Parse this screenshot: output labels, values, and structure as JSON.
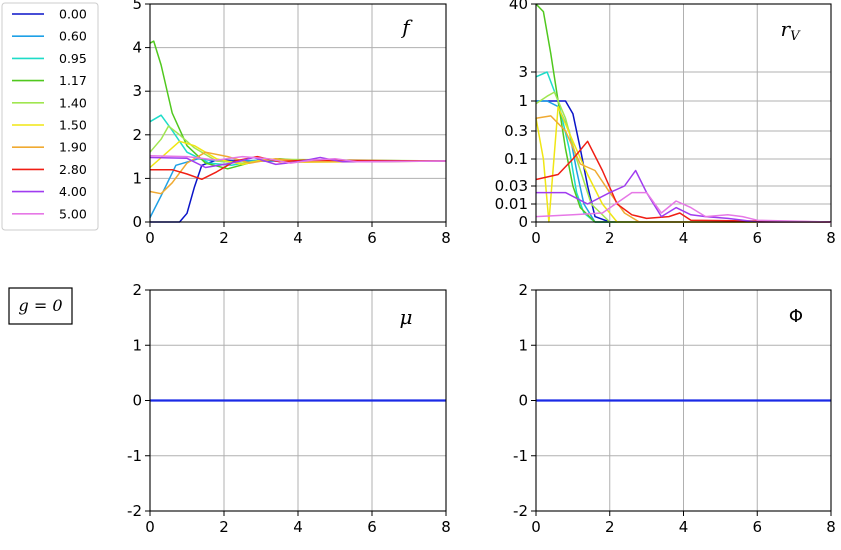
{
  "chart_data": [
    {
      "type": "line",
      "label": "f",
      "xlim": [
        0,
        8
      ],
      "ylim": [
        0,
        5
      ],
      "x_ticks": [
        "0",
        "2",
        "4",
        "6",
        "8"
      ],
      "y_ticks": [
        "0",
        "1",
        "2",
        "3",
        "4",
        "5"
      ],
      "grid": true,
      "series": [
        {
          "name": "0.00",
          "color": "#0a14c8",
          "points": [
            [
              0,
              0
            ],
            [
              0.8,
              0
            ],
            [
              1,
              0.2
            ],
            [
              1.2,
              0.8
            ],
            [
              1.4,
              1.3
            ],
            [
              1.8,
              1.42
            ],
            [
              3,
              1.4
            ],
            [
              8,
              1.4
            ]
          ]
        },
        {
          "name": "0.60",
          "color": "#1ea0e6",
          "points": [
            [
              0,
              0.1
            ],
            [
              0.3,
              0.6
            ],
            [
              0.7,
              1.3
            ],
            [
              1.3,
              1.45
            ],
            [
              2,
              1.38
            ],
            [
              3,
              1.42
            ],
            [
              8,
              1.4
            ]
          ]
        },
        {
          "name": "0.95",
          "color": "#1edcc8",
          "points": [
            [
              0,
              2.3
            ],
            [
              0.3,
              2.45
            ],
            [
              0.6,
              2.1
            ],
            [
              1,
              1.6
            ],
            [
              1.6,
              1.35
            ],
            [
              2.2,
              1.3
            ],
            [
              3,
              1.42
            ],
            [
              4,
              1.38
            ],
            [
              8,
              1.4
            ]
          ]
        },
        {
          "name": "1.17",
          "color": "#50c81e",
          "points": [
            [
              0,
              4.1
            ],
            [
              0.1,
              4.15
            ],
            [
              0.3,
              3.6
            ],
            [
              0.6,
              2.5
            ],
            [
              1,
              1.75
            ],
            [
              1.5,
              1.35
            ],
            [
              2.1,
              1.22
            ],
            [
              2.8,
              1.38
            ],
            [
              3.5,
              1.45
            ],
            [
              4.5,
              1.38
            ],
            [
              8,
              1.4
            ]
          ]
        },
        {
          "name": "1.40",
          "color": "#a0e650",
          "points": [
            [
              0,
              1.6
            ],
            [
              0.3,
              1.9
            ],
            [
              0.5,
              2.2
            ],
            [
              0.8,
              2.0
            ],
            [
              1.2,
              1.7
            ],
            [
              1.8,
              1.4
            ],
            [
              2.5,
              1.35
            ],
            [
              3.2,
              1.44
            ],
            [
              8,
              1.4
            ]
          ]
        },
        {
          "name": "1.50",
          "color": "#f0e614",
          "points": [
            [
              0,
              1.25
            ],
            [
              0.4,
              1.55
            ],
            [
              0.8,
              1.85
            ],
            [
              1.2,
              1.75
            ],
            [
              1.8,
              1.45
            ],
            [
              2.5,
              1.32
            ],
            [
              3.2,
              1.45
            ],
            [
              4,
              1.37
            ],
            [
              8,
              1.4
            ]
          ]
        },
        {
          "name": "1.90",
          "color": "#f0aa32",
          "points": [
            [
              0,
              0.7
            ],
            [
              0.3,
              0.65
            ],
            [
              0.6,
              0.9
            ],
            [
              1,
              1.35
            ],
            [
              1.5,
              1.6
            ],
            [
              2.1,
              1.5
            ],
            [
              2.7,
              1.35
            ],
            [
              3.4,
              1.45
            ],
            [
              4.2,
              1.38
            ],
            [
              8,
              1.4
            ]
          ]
        },
        {
          "name": "2.80",
          "color": "#f01e14",
          "points": [
            [
              0,
              1.2
            ],
            [
              0.6,
              1.2
            ],
            [
              1,
              1.1
            ],
            [
              1.4,
              0.98
            ],
            [
              1.8,
              1.15
            ],
            [
              2.3,
              1.4
            ],
            [
              2.9,
              1.5
            ],
            [
              3.5,
              1.38
            ],
            [
              4.2,
              1.42
            ],
            [
              8,
              1.4
            ]
          ]
        },
        {
          "name": "4.00",
          "color": "#a03cf0",
          "points": [
            [
              0,
              1.48
            ],
            [
              1,
              1.46
            ],
            [
              1.5,
              1.25
            ],
            [
              2.2,
              1.35
            ],
            [
              2.8,
              1.48
            ],
            [
              3.4,
              1.32
            ],
            [
              4,
              1.38
            ],
            [
              4.6,
              1.48
            ],
            [
              5.2,
              1.38
            ],
            [
              8,
              1.4
            ]
          ]
        },
        {
          "name": "5.00",
          "color": "#e678e6",
          "points": [
            [
              0,
              1.52
            ],
            [
              1,
              1.5
            ],
            [
              1.8,
              1.42
            ],
            [
              2.5,
              1.5
            ],
            [
              3.2,
              1.45
            ],
            [
              3.8,
              1.35
            ],
            [
              4.4,
              1.42
            ],
            [
              5,
              1.45
            ],
            [
              5.6,
              1.38
            ],
            [
              8,
              1.4
            ]
          ]
        }
      ]
    },
    {
      "type": "line",
      "label": "r_V",
      "xlim": [
        0,
        8
      ],
      "yscale": "asinh-like (compressed)",
      "x_ticks": [
        "0",
        "2",
        "4",
        "6",
        "8"
      ],
      "y_ticks": [
        "0",
        "0.01",
        "0.03",
        "0.1",
        "0.3",
        "1",
        "3",
        "40"
      ],
      "grid": true,
      "series": [
        {
          "name": "0.00",
          "color": "#0a14c8",
          "points": [
            [
              0,
              1
            ],
            [
              0.8,
              1
            ],
            [
              1,
              0.6
            ],
            [
              1.2,
              0.15
            ],
            [
              1.4,
              0.03
            ],
            [
              1.6,
              0.003
            ],
            [
              2,
              0
            ],
            [
              8,
              0
            ]
          ]
        },
        {
          "name": "0.60",
          "color": "#1ea0e6",
          "points": [
            [
              0,
              1
            ],
            [
              0.3,
              1
            ],
            [
              0.6,
              0.8
            ],
            [
              0.9,
              0.3
            ],
            [
              1.1,
              0.06
            ],
            [
              1.3,
              0.01
            ],
            [
              1.6,
              0
            ],
            [
              8,
              0
            ]
          ]
        },
        {
          "name": "0.95",
          "color": "#1edcc8",
          "points": [
            [
              0,
              2.5
            ],
            [
              0.3,
              3
            ],
            [
              0.6,
              1
            ],
            [
              0.9,
              0.15
            ],
            [
              1.1,
              0.02
            ],
            [
              1.3,
              0.005
            ],
            [
              1.6,
              0
            ],
            [
              8,
              0
            ]
          ]
        },
        {
          "name": "1.17",
          "color": "#50c81e",
          "points": [
            [
              0,
              40
            ],
            [
              0.2,
              30
            ],
            [
              0.4,
              6
            ],
            [
              0.6,
              1
            ],
            [
              0.8,
              0.15
            ],
            [
              1,
              0.03
            ],
            [
              1.2,
              0.008
            ],
            [
              1.6,
              0
            ],
            [
              8,
              0
            ]
          ]
        },
        {
          "name": "1.40",
          "color": "#a0e650",
          "points": [
            [
              0,
              0.9
            ],
            [
              0.3,
              1.2
            ],
            [
              0.5,
              1.4
            ],
            [
              0.8,
              0.5
            ],
            [
              1.1,
              0.1
            ],
            [
              1.5,
              0.01
            ],
            [
              2,
              0
            ],
            [
              8,
              0
            ]
          ]
        },
        {
          "name": "1.50",
          "color": "#f0e614",
          "points": [
            [
              0,
              0.5
            ],
            [
              0.2,
              0.1
            ],
            [
              0.35,
              0
            ],
            [
              0.6,
              0.8
            ],
            [
              1,
              0.2
            ],
            [
              1.4,
              0.05
            ],
            [
              1.8,
              0.01
            ],
            [
              2.2,
              0
            ],
            [
              8,
              0
            ]
          ]
        },
        {
          "name": "1.90",
          "color": "#f0aa32",
          "points": [
            [
              0,
              0.5
            ],
            [
              0.4,
              0.55
            ],
            [
              0.8,
              0.3
            ],
            [
              1.2,
              0.08
            ],
            [
              1.6,
              0.06
            ],
            [
              2,
              0.02
            ],
            [
              2.4,
              0.005
            ],
            [
              2.8,
              0
            ],
            [
              8,
              0
            ]
          ]
        },
        {
          "name": "2.80",
          "color": "#f01e14",
          "points": [
            [
              0,
              0.04
            ],
            [
              0.6,
              0.05
            ],
            [
              1,
              0.1
            ],
            [
              1.4,
              0.2
            ],
            [
              1.8,
              0.06
            ],
            [
              2.2,
              0.01
            ],
            [
              2.6,
              0.004
            ],
            [
              3,
              0.002
            ],
            [
              3.6,
              0.003
            ],
            [
              3.9,
              0.005
            ],
            [
              4.2,
              0.001
            ],
            [
              8,
              0
            ]
          ]
        },
        {
          "name": "4.00",
          "color": "#a03cf0",
          "points": [
            [
              0,
              0.02
            ],
            [
              0.8,
              0.02
            ],
            [
              1.4,
              0.01
            ],
            [
              2,
              0.02
            ],
            [
              2.4,
              0.03
            ],
            [
              2.7,
              0.06
            ],
            [
              3,
              0.02
            ],
            [
              3.4,
              0.003
            ],
            [
              3.8,
              0.008
            ],
            [
              4.2,
              0.004
            ],
            [
              4.6,
              0.003
            ],
            [
              5.2,
              0.002
            ],
            [
              6,
              0
            ],
            [
              8,
              0
            ]
          ]
        },
        {
          "name": "5.00",
          "color": "#e678e6",
          "points": [
            [
              0,
              0.003
            ],
            [
              1,
              0.004
            ],
            [
              1.8,
              0.005
            ],
            [
              2.6,
              0.02
            ],
            [
              3,
              0.02
            ],
            [
              3.4,
              0.005
            ],
            [
              3.8,
              0.012
            ],
            [
              4.2,
              0.008
            ],
            [
              4.6,
              0.003
            ],
            [
              5.2,
              0.004
            ],
            [
              5.6,
              0.003
            ],
            [
              6,
              0.001
            ],
            [
              8,
              0
            ]
          ]
        }
      ]
    },
    {
      "type": "line",
      "label": "μ",
      "xlim": [
        0,
        8
      ],
      "ylim": [
        -2,
        2
      ],
      "x_ticks": [
        "0",
        "2",
        "4",
        "6",
        "8"
      ],
      "y_ticks": [
        "-2",
        "-1",
        "0",
        "1",
        "2"
      ],
      "grid": true,
      "series": [
        {
          "color": "#1a2ae6",
          "points": [
            [
              0,
              0
            ],
            [
              8,
              0
            ]
          ]
        }
      ]
    },
    {
      "type": "line",
      "label": "Φ",
      "xlim": [
        0,
        8
      ],
      "ylim": [
        -2,
        2
      ],
      "x_ticks": [
        "0",
        "2",
        "4",
        "6",
        "8"
      ],
      "y_ticks": [
        "-2",
        "-1",
        "0",
        "1",
        "2"
      ],
      "grid": true,
      "series": [
        {
          "color": "#1a2ae6",
          "points": [
            [
              0,
              0
            ],
            [
              8,
              0
            ]
          ]
        }
      ]
    }
  ],
  "legend": {
    "placement": "left",
    "entries": [
      {
        "label": "0.00",
        "color": "#0a14c8"
      },
      {
        "label": "0.60",
        "color": "#1ea0e6"
      },
      {
        "label": "0.95",
        "color": "#1edcc8"
      },
      {
        "label": "1.17",
        "color": "#50c81e"
      },
      {
        "label": "1.40",
        "color": "#a0e650"
      },
      {
        "label": "1.50",
        "color": "#f0e614"
      },
      {
        "label": "1.90",
        "color": "#f0aa32"
      },
      {
        "label": "2.80",
        "color": "#f01e14"
      },
      {
        "label": "4.00",
        "color": "#a03cf0"
      },
      {
        "label": "5.00",
        "color": "#e678e6"
      }
    ]
  },
  "g_label": "g = 0"
}
